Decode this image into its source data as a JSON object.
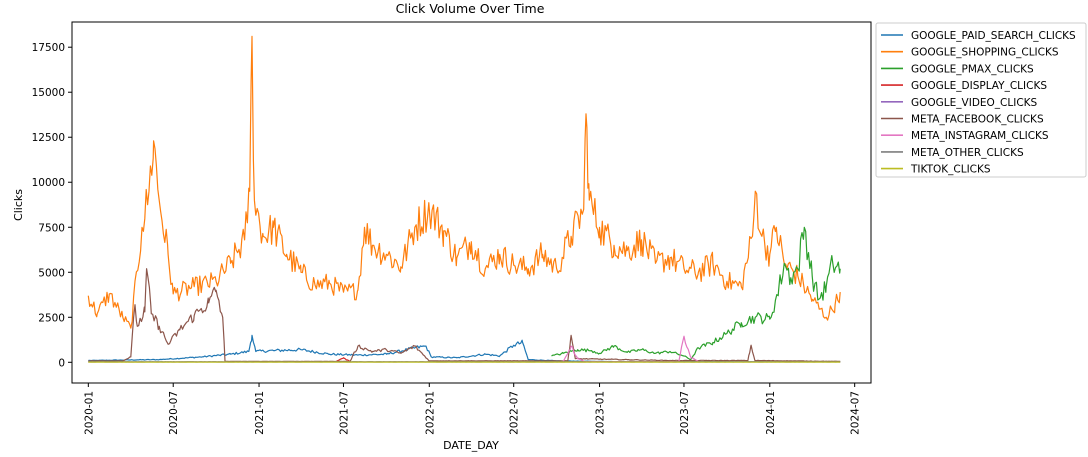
{
  "chart_data": {
    "type": "line",
    "title": "Click Volume Over Time",
    "xlabel": "DATE_DAY",
    "ylabel": "Clicks",
    "xlim": [
      "2019-11-27",
      "2024-08-05"
    ],
    "ylim": [
      -1150,
      18900
    ],
    "x_ticks": [
      "2020-01",
      "2020-07",
      "2021-01",
      "2021-07",
      "2022-01",
      "2022-07",
      "2023-01",
      "2023-07",
      "2024-01",
      "2024-07"
    ],
    "y_ticks": [
      0,
      2500,
      5000,
      7500,
      10000,
      12500,
      15000,
      17500
    ],
    "y_tick_labels": [
      "0",
      "2500",
      "5000",
      "7500",
      "10000",
      "12500",
      "15000",
      "17500"
    ],
    "grid": false,
    "legend_position": "outside right, top",
    "series": [
      {
        "name": "GOOGLE_PAID_SEARCH_CLICKS",
        "color": "#1f77b4",
        "points": [
          [
            "2020-01-01",
            100
          ],
          [
            "2020-06-01",
            150
          ],
          [
            "2020-09-01",
            300
          ],
          [
            "2020-11-01",
            450
          ],
          [
            "2020-12-10",
            600
          ],
          [
            "2020-12-17",
            1500
          ],
          [
            "2020-12-25",
            600
          ],
          [
            "2021-02-01",
            650
          ],
          [
            "2021-04-01",
            700
          ],
          [
            "2021-06-01",
            450
          ],
          [
            "2021-08-01",
            400
          ],
          [
            "2021-10-01",
            450
          ],
          [
            "2021-12-01",
            800
          ],
          [
            "2021-12-25",
            900
          ],
          [
            "2022-01-05",
            300
          ],
          [
            "2022-03-01",
            250
          ],
          [
            "2022-05-01",
            450
          ],
          [
            "2022-06-01",
            350
          ],
          [
            "2022-07-01",
            950
          ],
          [
            "2022-07-20",
            1100
          ],
          [
            "2022-08-01",
            150
          ],
          [
            "2022-10-01",
            80
          ],
          [
            "2023-02-01",
            40
          ],
          [
            "2024-01-01",
            30
          ],
          [
            "2024-05-31",
            30
          ]
        ]
      },
      {
        "name": "GOOGLE_SHOPPING_CLICKS",
        "color": "#ff7f0e",
        "points": [
          [
            "2020-01-01",
            3700
          ],
          [
            "2020-01-20",
            2700
          ],
          [
            "2020-02-15",
            3800
          ],
          [
            "2020-03-15",
            2500
          ],
          [
            "2020-04-01",
            1900
          ],
          [
            "2020-04-25",
            7500
          ],
          [
            "2020-05-10",
            9500
          ],
          [
            "2020-05-20",
            12300
          ],
          [
            "2020-06-01",
            9000
          ],
          [
            "2020-06-20",
            6000
          ],
          [
            "2020-07-01",
            3800
          ],
          [
            "2020-08-15",
            4200
          ],
          [
            "2020-10-01",
            4500
          ],
          [
            "2020-11-01",
            5500
          ],
          [
            "2020-12-01",
            6800
          ],
          [
            "2020-12-12",
            9500
          ],
          [
            "2020-12-17",
            18100
          ],
          [
            "2020-12-22",
            9000
          ],
          [
            "2021-01-10",
            7000
          ],
          [
            "2021-02-01",
            7500
          ],
          [
            "2021-03-01",
            6000
          ],
          [
            "2021-04-01",
            5000
          ],
          [
            "2021-05-01",
            4300
          ],
          [
            "2021-06-01",
            4400
          ],
          [
            "2021-07-01",
            3900
          ],
          [
            "2021-08-01",
            4000
          ],
          [
            "2021-08-15",
            7500
          ],
          [
            "2021-09-01",
            6500
          ],
          [
            "2021-10-01",
            6000
          ],
          [
            "2021-11-01",
            5300
          ],
          [
            "2021-12-01",
            7500
          ],
          [
            "2022-01-01",
            8500
          ],
          [
            "2022-02-01",
            7300
          ],
          [
            "2022-03-01",
            5800
          ],
          [
            "2022-04-01",
            6700
          ],
          [
            "2022-05-01",
            5200
          ],
          [
            "2022-06-01",
            6000
          ],
          [
            "2022-07-01",
            5400
          ],
          [
            "2022-08-01",
            5200
          ],
          [
            "2022-09-01",
            6000
          ],
          [
            "2022-10-01",
            5200
          ],
          [
            "2022-11-01",
            7000
          ],
          [
            "2022-11-28",
            8500
          ],
          [
            "2022-12-03",
            13800
          ],
          [
            "2022-12-10",
            9000
          ],
          [
            "2023-01-01",
            7500
          ],
          [
            "2023-02-01",
            6500
          ],
          [
            "2023-03-01",
            6200
          ],
          [
            "2023-04-01",
            6800
          ],
          [
            "2023-05-01",
            5500
          ],
          [
            "2023-06-01",
            5800
          ],
          [
            "2023-07-01",
            5200
          ],
          [
            "2023-08-01",
            5000
          ],
          [
            "2023-09-01",
            5500
          ],
          [
            "2023-10-01",
            4500
          ],
          [
            "2023-11-01",
            4200
          ],
          [
            "2023-11-25",
            7000
          ],
          [
            "2023-12-01",
            9500
          ],
          [
            "2023-12-15",
            7000
          ],
          [
            "2024-01-01",
            6000
          ],
          [
            "2024-01-15",
            7500
          ],
          [
            "2024-02-01",
            5500
          ],
          [
            "2024-03-01",
            4800
          ],
          [
            "2024-04-01",
            3500
          ],
          [
            "2024-05-01",
            2500
          ],
          [
            "2024-05-20",
            3200
          ],
          [
            "2024-05-31",
            3900
          ]
        ]
      },
      {
        "name": "GOOGLE_PMAX_CLICKS",
        "color": "#2ca02c",
        "points": [
          [
            "2022-09-20",
            350
          ],
          [
            "2022-10-15",
            500
          ],
          [
            "2022-11-15",
            700
          ],
          [
            "2022-12-15",
            650
          ],
          [
            "2023-01-01",
            500
          ],
          [
            "2023-02-01",
            900
          ],
          [
            "2023-03-01",
            550
          ],
          [
            "2023-04-01",
            700
          ],
          [
            "2023-05-01",
            500
          ],
          [
            "2023-06-01",
            600
          ],
          [
            "2023-07-01",
            350
          ],
          [
            "2023-07-15",
            150
          ],
          [
            "2023-08-01",
            800
          ],
          [
            "2023-09-01",
            1100
          ],
          [
            "2023-10-01",
            1600
          ],
          [
            "2023-11-01",
            2200
          ],
          [
            "2023-12-01",
            2500
          ],
          [
            "2024-01-01",
            2400
          ],
          [
            "2024-01-20",
            4000
          ],
          [
            "2024-02-01",
            5500
          ],
          [
            "2024-02-15",
            4700
          ],
          [
            "2024-03-01",
            5200
          ],
          [
            "2024-03-15",
            7500
          ],
          [
            "2024-04-01",
            4800
          ],
          [
            "2024-04-15",
            3500
          ],
          [
            "2024-05-01",
            4200
          ],
          [
            "2024-05-15",
            5500
          ],
          [
            "2024-05-31",
            5200
          ]
        ]
      },
      {
        "name": "GOOGLE_DISPLAY_CLICKS",
        "color": "#d62728",
        "points": [
          [
            "2021-06-15",
            40
          ],
          [
            "2021-07-01",
            250
          ],
          [
            "2021-07-15",
            40
          ]
        ]
      },
      {
        "name": "GOOGLE_VIDEO_CLICKS",
        "color": "#9467bd",
        "points": [
          [
            "2020-01-01",
            20
          ],
          [
            "2024-05-31",
            20
          ]
        ]
      },
      {
        "name": "META_FACEBOOK_CLICKS",
        "color": "#8c564b",
        "points": [
          [
            "2020-01-01",
            80
          ],
          [
            "2020-03-15",
            80
          ],
          [
            "2020-04-01",
            300
          ],
          [
            "2020-04-10",
            3200
          ],
          [
            "2020-04-15",
            2000
          ],
          [
            "2020-05-01",
            2800
          ],
          [
            "2020-05-05",
            5200
          ],
          [
            "2020-05-15",
            2700
          ],
          [
            "2020-06-01",
            2000
          ],
          [
            "2020-06-20",
            1000
          ],
          [
            "2020-07-15",
            1800
          ],
          [
            "2020-08-15",
            2600
          ],
          [
            "2020-09-15",
            3300
          ],
          [
            "2020-10-01",
            4000
          ],
          [
            "2020-10-15",
            2500
          ],
          [
            "2020-10-20",
            50
          ],
          [
            "2021-07-15",
            50
          ],
          [
            "2021-08-01",
            900
          ],
          [
            "2021-09-01",
            600
          ],
          [
            "2021-10-01",
            700
          ],
          [
            "2021-11-01",
            500
          ],
          [
            "2021-12-01",
            900
          ],
          [
            "2022-01-01",
            80
          ],
          [
            "2022-10-25",
            80
          ],
          [
            "2022-11-01",
            1500
          ],
          [
            "2022-11-10",
            200
          ],
          [
            "2023-06-01",
            100
          ],
          [
            "2023-07-01",
            100
          ],
          [
            "2023-11-15",
            100
          ],
          [
            "2023-11-22",
            950
          ],
          [
            "2023-11-30",
            100
          ],
          [
            "2024-05-31",
            50
          ]
        ]
      },
      {
        "name": "META_INSTAGRAM_CLICKS",
        "color": "#e377c2",
        "points": [
          [
            "2022-10-15",
            40
          ],
          [
            "2022-11-01",
            900
          ],
          [
            "2022-11-15",
            200
          ],
          [
            "2022-12-01",
            40
          ],
          [
            "2023-06-20",
            40
          ],
          [
            "2023-07-01",
            1450
          ],
          [
            "2023-07-15",
            300
          ],
          [
            "2023-08-01",
            40
          ]
        ]
      },
      {
        "name": "META_OTHER_CLICKS",
        "color": "#7f7f7f",
        "points": [
          [
            "2020-01-01",
            30
          ],
          [
            "2024-05-31",
            30
          ]
        ]
      },
      {
        "name": "TIKTOK_CLICKS",
        "color": "#bcbd22",
        "points": [
          [
            "2020-01-01",
            10
          ],
          [
            "2024-05-31",
            10
          ]
        ]
      }
    ]
  }
}
